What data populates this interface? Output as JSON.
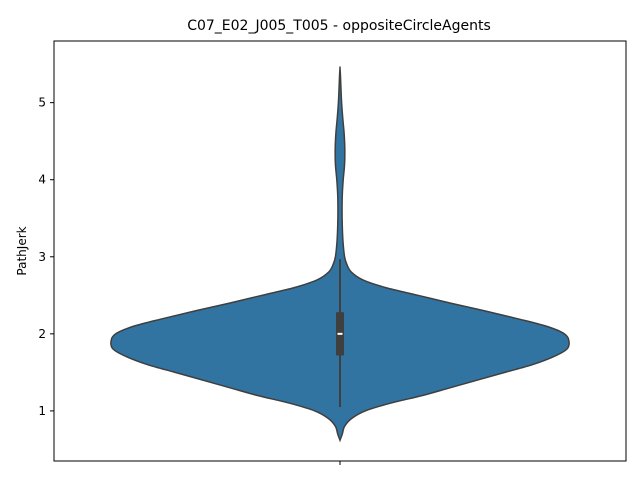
{
  "chart_data": {
    "type": "violin",
    "title": "C07_E02_J005_T005 - oppositeCircleAgents",
    "xlabel": "",
    "ylabel": "PathJerk",
    "ylim": [
      0.35,
      5.8
    ],
    "yticks": [
      "1",
      "2",
      "3",
      "4",
      "5"
    ],
    "grid": false,
    "colors": {
      "violin_fill": "#3274a1",
      "outline": "#3f3f3f",
      "box": "#3f3f3f",
      "median": "#ffffff",
      "axis": "#000000"
    },
    "series": [
      {
        "density_profile": [
          [
            0.62,
            0.0
          ],
          [
            0.7,
            0.01
          ],
          [
            0.8,
            0.02
          ],
          [
            0.9,
            0.05
          ],
          [
            1.0,
            0.11
          ],
          [
            1.1,
            0.22
          ],
          [
            1.2,
            0.36
          ],
          [
            1.3,
            0.48
          ],
          [
            1.4,
            0.6
          ],
          [
            1.5,
            0.72
          ],
          [
            1.6,
            0.84
          ],
          [
            1.7,
            0.93
          ],
          [
            1.8,
            0.99
          ],
          [
            1.9,
            1.0
          ],
          [
            2.0,
            0.98
          ],
          [
            2.1,
            0.9
          ],
          [
            2.2,
            0.77
          ],
          [
            2.3,
            0.63
          ],
          [
            2.4,
            0.48
          ],
          [
            2.5,
            0.34
          ],
          [
            2.6,
            0.2
          ],
          [
            2.7,
            0.1
          ],
          [
            2.8,
            0.05
          ],
          [
            2.9,
            0.03
          ],
          [
            3.0,
            0.02
          ],
          [
            3.2,
            0.013
          ],
          [
            3.4,
            0.01
          ],
          [
            3.6,
            0.009
          ],
          [
            3.8,
            0.01
          ],
          [
            4.0,
            0.014
          ],
          [
            4.2,
            0.02
          ],
          [
            4.4,
            0.021
          ],
          [
            4.6,
            0.018
          ],
          [
            4.8,
            0.012
          ],
          [
            5.0,
            0.007
          ],
          [
            5.2,
            0.004
          ],
          [
            5.35,
            0.002
          ],
          [
            5.45,
            0.0
          ]
        ],
        "box": {
          "q1": 1.72,
          "median": 2.0,
          "q3": 2.28,
          "whisker_low": 1.05,
          "whisker_high": 2.97
        }
      }
    ]
  }
}
